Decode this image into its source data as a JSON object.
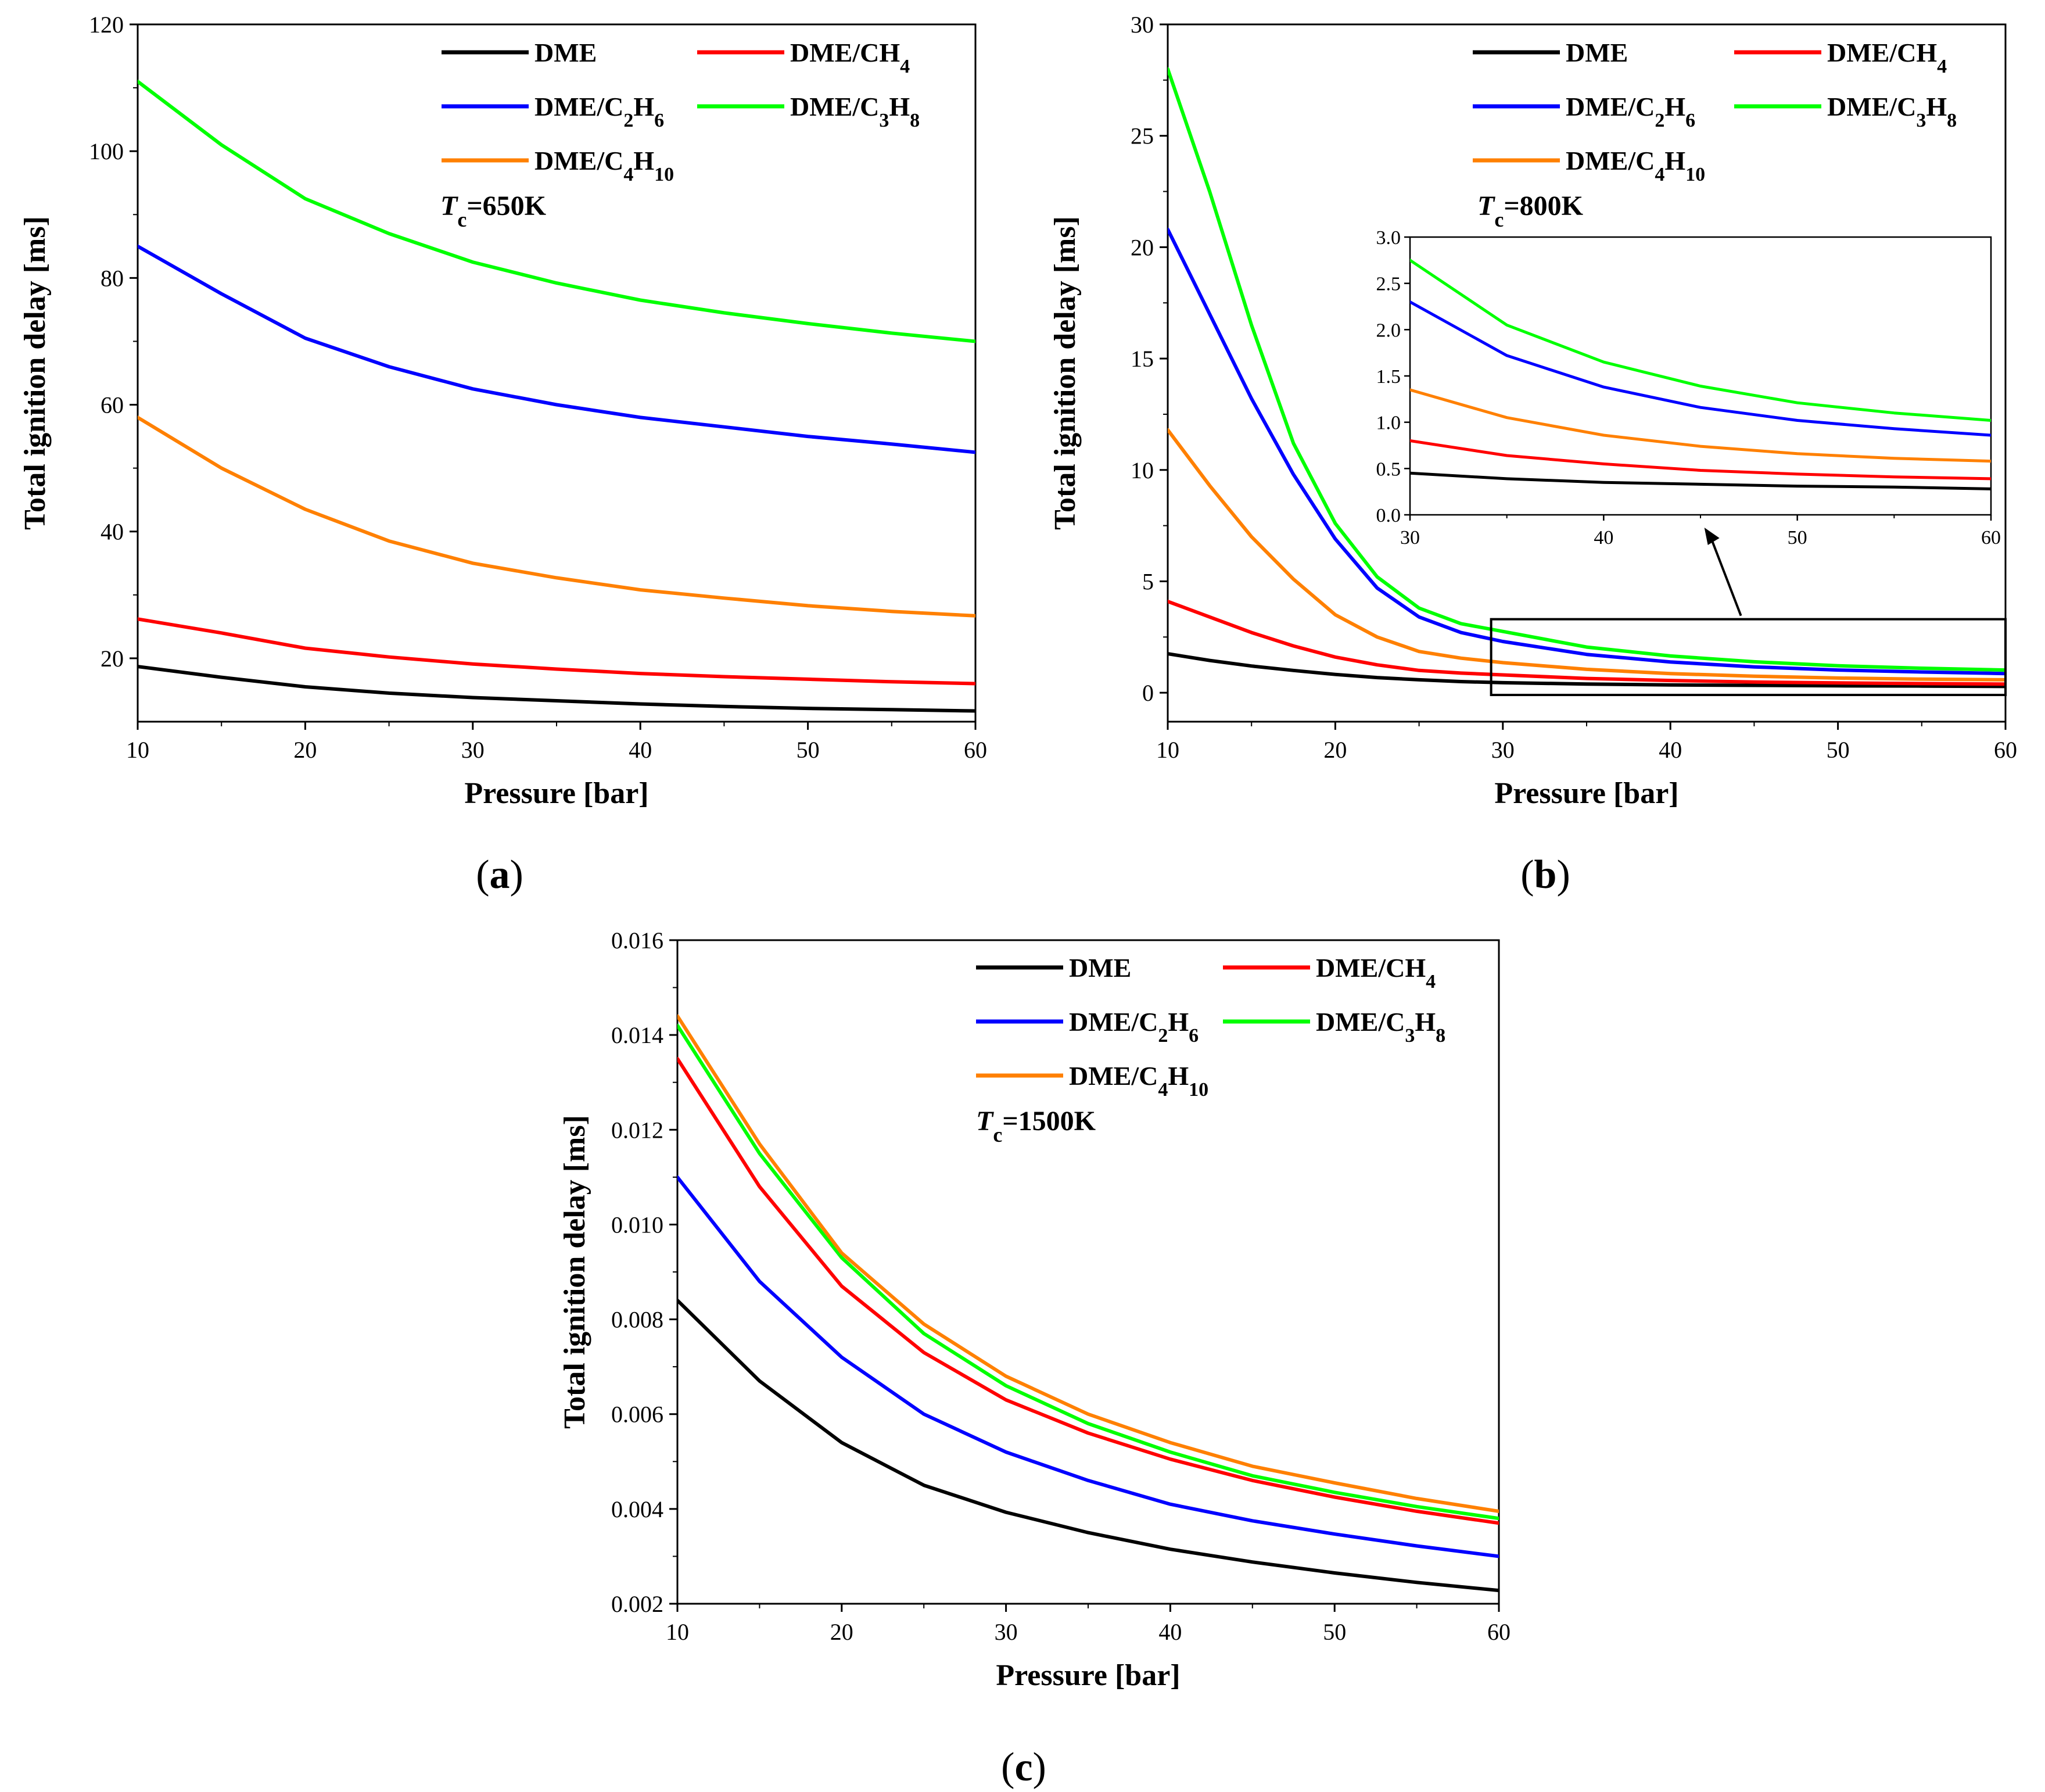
{
  "figure": {
    "panels": [
      {
        "label_text": "(a)",
        "label_letter": "a"
      },
      {
        "label_text": "(b)",
        "label_letter": "b"
      },
      {
        "label_text": "(c)",
        "label_letter": "c"
      }
    ]
  },
  "chart_data": [
    {
      "type": "line",
      "panel": "(a)",
      "title": "",
      "annotation": {
        "T": "T",
        "sub": "c",
        "rest": "=650K"
      },
      "xlabel": "Pressure [bar]",
      "ylabel": "Total ignition delay [ms]",
      "xlim": [
        10,
        60
      ],
      "ylim": [
        10,
        120
      ],
      "xticks": [
        10,
        20,
        30,
        40,
        50,
        60
      ],
      "yticks": [
        20,
        40,
        60,
        80,
        100,
        120
      ],
      "legend_position": "top-right",
      "x": [
        10,
        15,
        20,
        25,
        30,
        35,
        40,
        45,
        50,
        55,
        60
      ],
      "series": [
        {
          "name": "DME",
          "color": "#000000",
          "parts": [
            {
              "t": "DME"
            }
          ],
          "values": [
            18.7,
            17.0,
            15.5,
            14.5,
            13.8,
            13.3,
            12.8,
            12.4,
            12.1,
            11.9,
            11.7
          ]
        },
        {
          "name": "DME/CH4",
          "color": "#ff0000",
          "parts": [
            {
              "t": "DME/CH"
            },
            {
              "t": "4",
              "sub": true
            }
          ],
          "values": [
            26.2,
            24.0,
            21.6,
            20.2,
            19.1,
            18.3,
            17.6,
            17.1,
            16.7,
            16.3,
            16.0
          ]
        },
        {
          "name": "DME/C2H6",
          "color": "#0000ff",
          "parts": [
            {
              "t": "DME/C"
            },
            {
              "t": "2",
              "sub": true
            },
            {
              "t": "H"
            },
            {
              "t": "6",
              "sub": true
            }
          ],
          "values": [
            85.0,
            77.5,
            70.5,
            66.0,
            62.5,
            60.0,
            58.0,
            56.5,
            55.0,
            53.8,
            52.5
          ]
        },
        {
          "name": "DME/C3H8",
          "color": "#00ff00",
          "parts": [
            {
              "t": "DME/C"
            },
            {
              "t": "3",
              "sub": true
            },
            {
              "t": "H"
            },
            {
              "t": "8",
              "sub": true
            }
          ],
          "values": [
            111.0,
            101.0,
            92.5,
            87.0,
            82.5,
            79.2,
            76.5,
            74.5,
            72.8,
            71.3,
            70.0
          ]
        },
        {
          "name": "DME/C4H10",
          "color": "#ff8000",
          "parts": [
            {
              "t": "DME/C"
            },
            {
              "t": "4",
              "sub": true
            },
            {
              "t": "H"
            },
            {
              "t": "10",
              "sub": true
            }
          ],
          "values": [
            58.0,
            50.0,
            43.5,
            38.5,
            35.0,
            32.7,
            30.8,
            29.5,
            28.3,
            27.4,
            26.7
          ]
        }
      ]
    },
    {
      "type": "line",
      "panel": "(b)",
      "title": "",
      "annotation": {
        "T": "T",
        "sub": "c",
        "rest": "=800K"
      },
      "xlabel": "Pressure [bar]",
      "ylabel": "Total ignition delay [ms]",
      "xlim": [
        10,
        60
      ],
      "ylim": [
        -1.3,
        30
      ],
      "xticks": [
        10,
        20,
        30,
        40,
        50,
        60
      ],
      "yticks": [
        0,
        5,
        10,
        15,
        20,
        25,
        30
      ],
      "legend_position": "top-right",
      "zoom_box": {
        "x": [
          29.3,
          60
        ],
        "y": [
          -0.1,
          3.3
        ]
      },
      "x": [
        10,
        12.5,
        15,
        17.5,
        20,
        22.5,
        25,
        27.5,
        30,
        35,
        40,
        45,
        50,
        55,
        60
      ],
      "series": [
        {
          "name": "DME",
          "color": "#000000",
          "parts": [
            {
              "t": "DME"
            }
          ],
          "values": [
            1.75,
            1.45,
            1.2,
            1.0,
            0.82,
            0.68,
            0.58,
            0.5,
            0.45,
            0.39,
            0.35,
            0.33,
            0.31,
            0.3,
            0.28
          ]
        },
        {
          "name": "DME/CH4",
          "color": "#ff0000",
          "parts": [
            {
              "t": "DME/CH"
            },
            {
              "t": "4",
              "sub": true
            }
          ],
          "values": [
            4.1,
            3.4,
            2.7,
            2.1,
            1.6,
            1.25,
            1.0,
            0.88,
            0.8,
            0.64,
            0.55,
            0.48,
            0.44,
            0.41,
            0.39
          ]
        },
        {
          "name": "DME/C2H6",
          "color": "#0000ff",
          "parts": [
            {
              "t": "DME/C"
            },
            {
              "t": "2",
              "sub": true
            },
            {
              "t": "H"
            },
            {
              "t": "6",
              "sub": true
            }
          ],
          "values": [
            20.8,
            17.0,
            13.2,
            9.8,
            6.9,
            4.7,
            3.4,
            2.7,
            2.3,
            1.72,
            1.38,
            1.16,
            1.02,
            0.93,
            0.86
          ]
        },
        {
          "name": "DME/C3H8",
          "color": "#00ff00",
          "parts": [
            {
              "t": "DME/C"
            },
            {
              "t": "3",
              "sub": true
            },
            {
              "t": "H"
            },
            {
              "t": "8",
              "sub": true
            }
          ],
          "values": [
            28.0,
            22.5,
            16.5,
            11.2,
            7.6,
            5.2,
            3.8,
            3.1,
            2.75,
            2.05,
            1.65,
            1.39,
            1.21,
            1.1,
            1.02
          ]
        },
        {
          "name": "DME/C4H10",
          "color": "#ff8000",
          "parts": [
            {
              "t": "DME/C"
            },
            {
              "t": "4",
              "sub": true
            },
            {
              "t": "H"
            },
            {
              "t": "10",
              "sub": true
            }
          ],
          "values": [
            11.8,
            9.3,
            7.0,
            5.1,
            3.5,
            2.5,
            1.85,
            1.55,
            1.35,
            1.05,
            0.86,
            0.74,
            0.66,
            0.61,
            0.58
          ]
        }
      ],
      "inset": {
        "xlim": [
          30,
          60
        ],
        "ylim": [
          0,
          3
        ],
        "xticks": [
          30,
          40,
          50,
          60
        ],
        "yticks": [
          0.0,
          0.5,
          1.0,
          1.5,
          2.0,
          2.5,
          3.0
        ],
        "ytick_labels": [
          "0.0",
          "0.5",
          "1.0",
          "1.5",
          "2.0",
          "2.5",
          "3.0"
        ]
      }
    },
    {
      "type": "line",
      "panel": "(c)",
      "title": "",
      "annotation": {
        "T": "T",
        "sub": "c",
        "rest": "=1500K"
      },
      "xlabel": "Pressure [bar]",
      "ylabel": "Total ignition delay [ms]",
      "xlim": [
        10,
        60
      ],
      "ylim": [
        0.002,
        0.016
      ],
      "xticks": [
        10,
        20,
        30,
        40,
        50,
        60
      ],
      "yticks": [
        0.002,
        0.004,
        0.006,
        0.008,
        0.01,
        0.012,
        0.014,
        0.016
      ],
      "ytick_labels": [
        "0.002",
        "0.004",
        "0.006",
        "0.008",
        "0.010",
        "0.012",
        "0.014",
        "0.016"
      ],
      "legend_position": "top-right",
      "x": [
        10,
        15,
        20,
        25,
        30,
        35,
        40,
        45,
        50,
        55,
        60
      ],
      "series": [
        {
          "name": "DME",
          "color": "#000000",
          "parts": [
            {
              "t": "DME"
            }
          ],
          "values": [
            0.0084,
            0.0067,
            0.0054,
            0.0045,
            0.00393,
            0.0035,
            0.00315,
            0.00288,
            0.00265,
            0.00245,
            0.00228
          ]
        },
        {
          "name": "DME/CH4",
          "color": "#ff0000",
          "parts": [
            {
              "t": "DME/CH"
            },
            {
              "t": "4",
              "sub": true
            }
          ],
          "values": [
            0.0135,
            0.0108,
            0.0087,
            0.0073,
            0.0063,
            0.0056,
            0.00505,
            0.0046,
            0.00425,
            0.00395,
            0.0037
          ]
        },
        {
          "name": "DME/C2H6",
          "color": "#0000ff",
          "parts": [
            {
              "t": "DME/C"
            },
            {
              "t": "2",
              "sub": true
            },
            {
              "t": "H"
            },
            {
              "t": "6",
              "sub": true
            }
          ],
          "values": [
            0.011,
            0.0088,
            0.0072,
            0.006,
            0.0052,
            0.0046,
            0.0041,
            0.00375,
            0.00347,
            0.00322,
            0.003
          ]
        },
        {
          "name": "DME/C3H8",
          "color": "#00ff00",
          "parts": [
            {
              "t": "DME/C"
            },
            {
              "t": "3",
              "sub": true
            },
            {
              "t": "H"
            },
            {
              "t": "8",
              "sub": true
            }
          ],
          "values": [
            0.0142,
            0.0115,
            0.0093,
            0.0077,
            0.0066,
            0.0058,
            0.0052,
            0.0047,
            0.00435,
            0.00405,
            0.0038
          ]
        },
        {
          "name": "DME/C4H10",
          "color": "#ff8000",
          "parts": [
            {
              "t": "DME/C"
            },
            {
              "t": "4",
              "sub": true
            },
            {
              "t": "H"
            },
            {
              "t": "10",
              "sub": true
            }
          ],
          "values": [
            0.0144,
            0.0117,
            0.0094,
            0.0079,
            0.0068,
            0.006,
            0.0054,
            0.0049,
            0.00455,
            0.00422,
            0.00395
          ]
        }
      ]
    }
  ]
}
